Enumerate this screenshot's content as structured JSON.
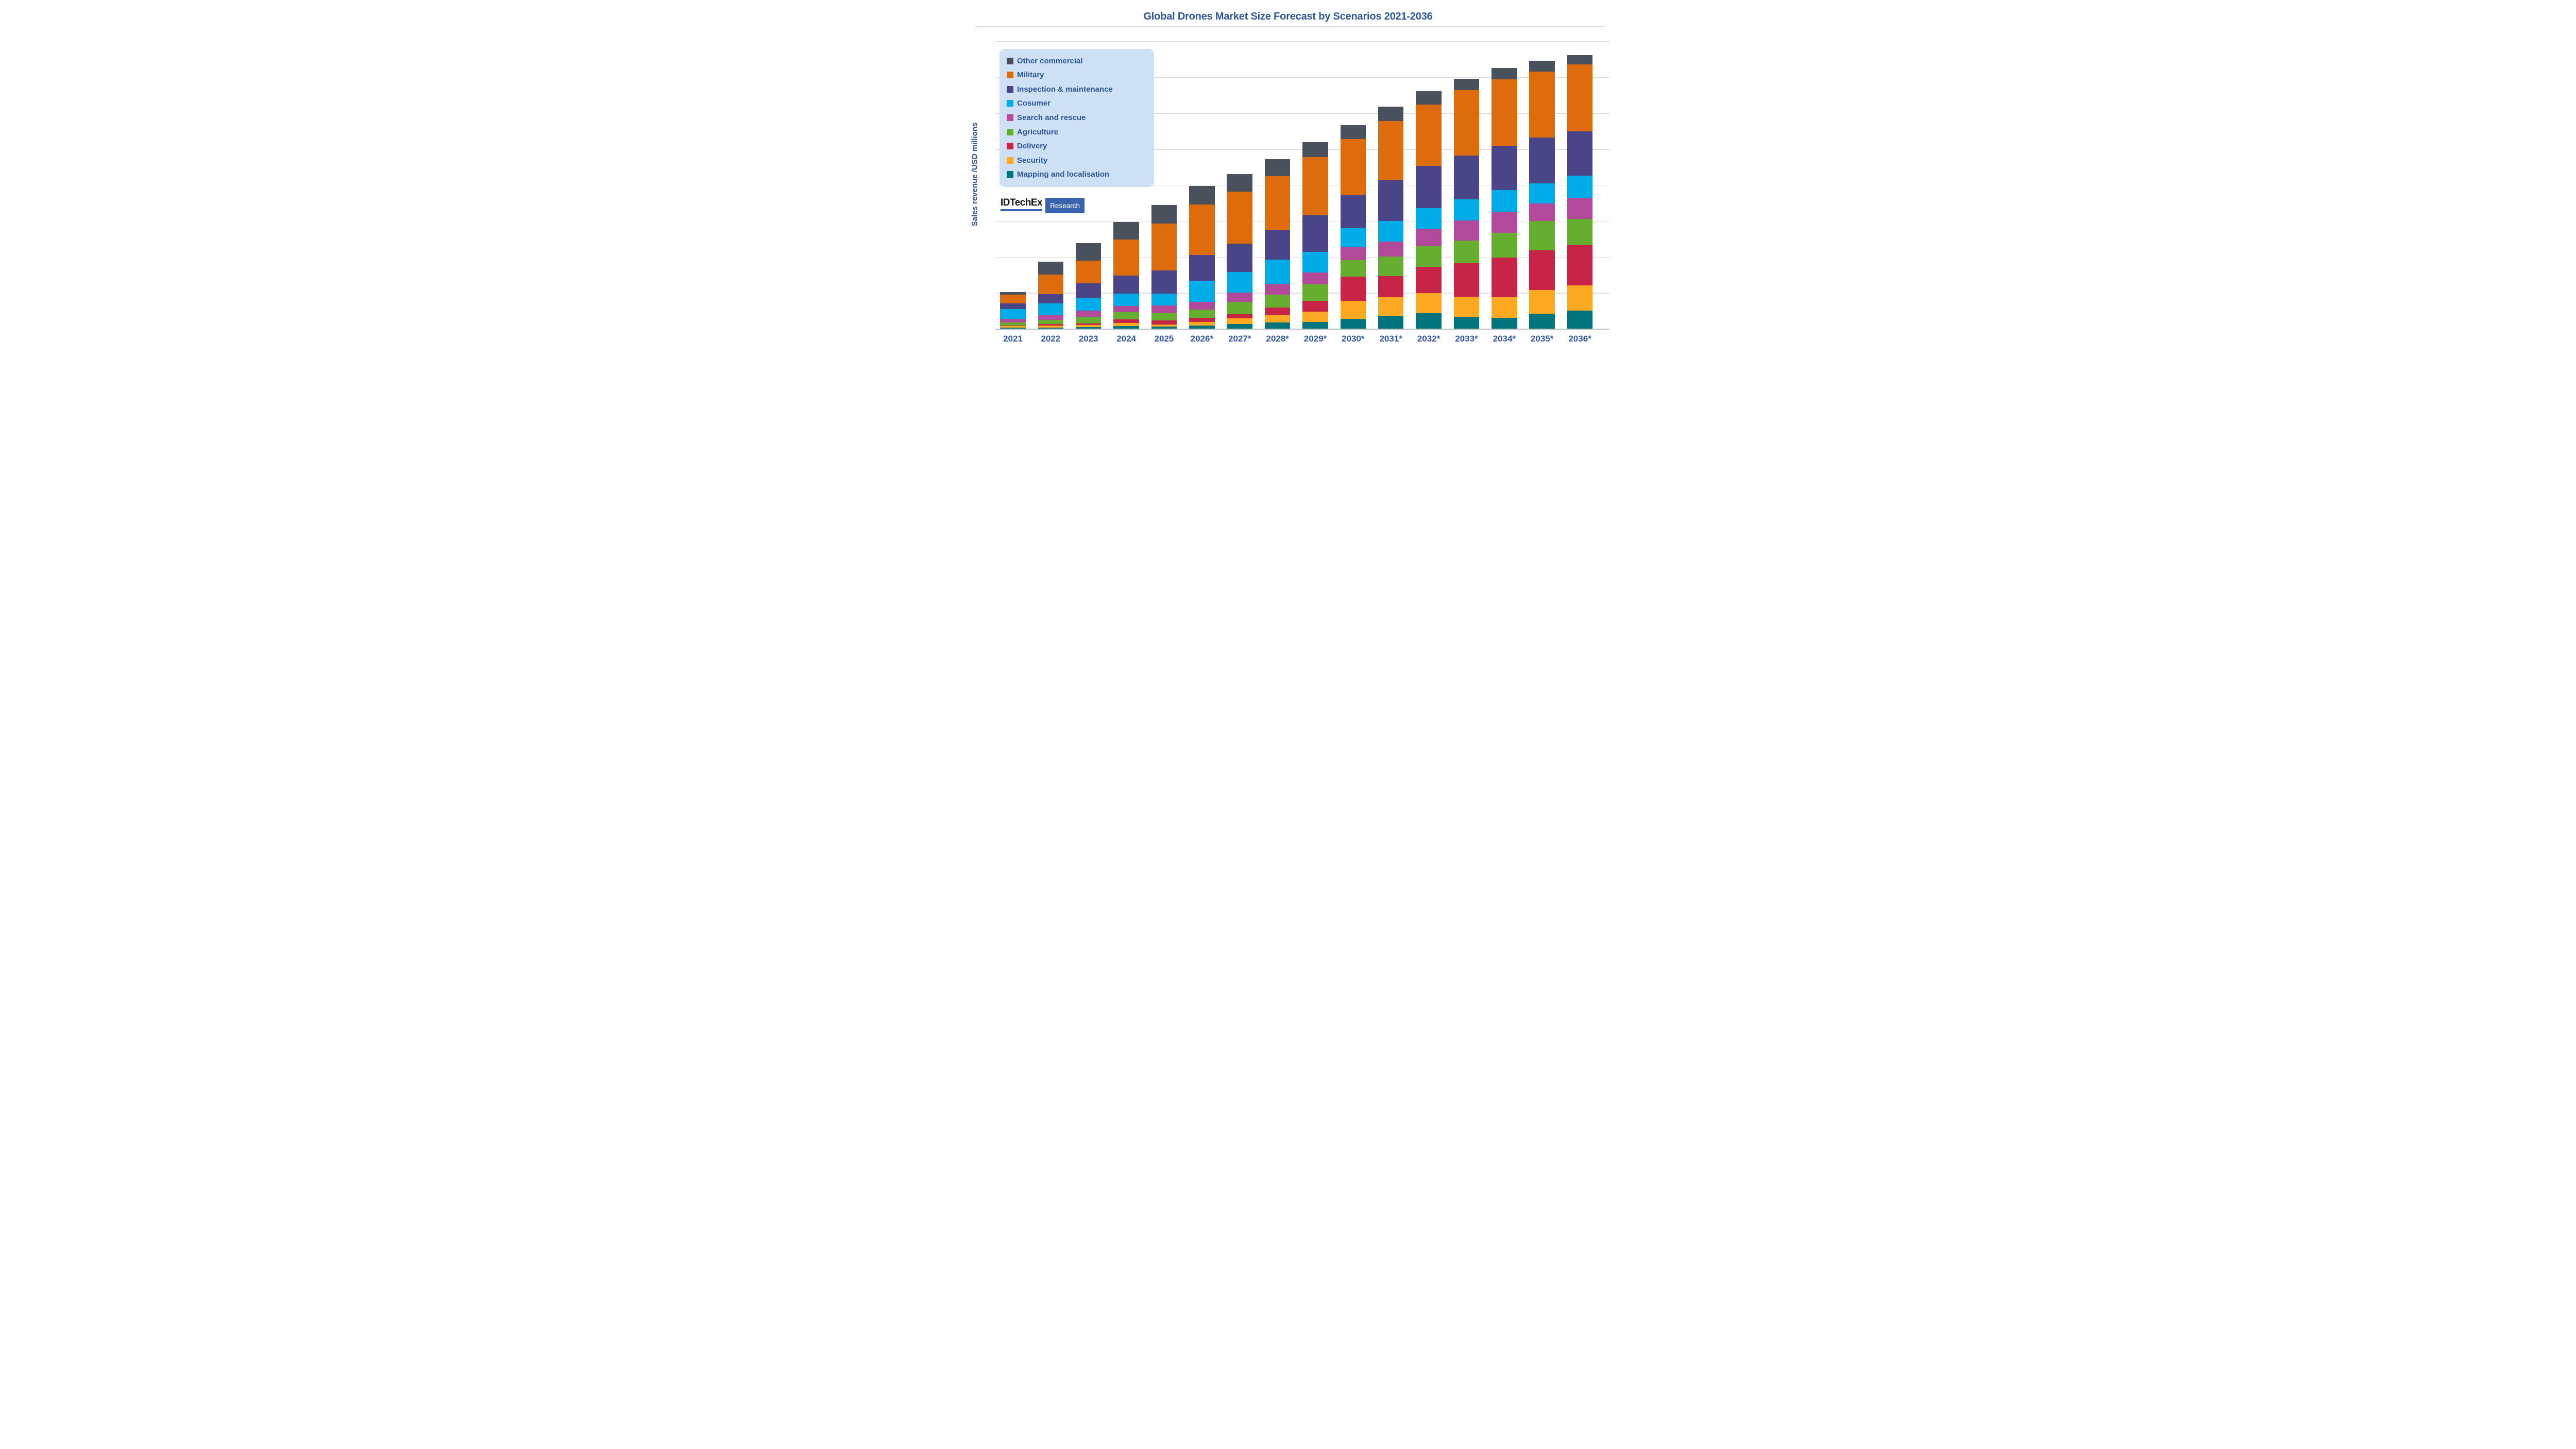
{
  "title": "Global Drones Market Size Forecast by Scenarios 2021-2036",
  "y_axis_label": "Sales revenue /USD millions",
  "logo": {
    "brand": "IDTechEx",
    "badge": "Research"
  },
  "colors": {
    "other_commercial": "#4A515C",
    "military": "#DE6C0C",
    "inspection_maintenance": "#4A4489",
    "consumer": "#00ACE8",
    "search_rescue": "#B2499B",
    "agriculture": "#66AE30",
    "delivery": "#C82448",
    "security": "#FCA821",
    "mapping_localisation": "#00747C",
    "title_text": "#2F5596",
    "axis_label_text": "#33589E",
    "legend_bg": "#CDE0F4",
    "gridline": "#DDDDDD",
    "baseline": "#C8C8C8"
  },
  "legend": {
    "items": [
      {
        "label": "Other commercial",
        "color": "#4A515C"
      },
      {
        "label": "Military",
        "color": "#DE6C0C"
      },
      {
        "label": "Inspection & maintenance",
        "color": "#4A4489"
      },
      {
        "label": "Cosumer",
        "color": "#00ACE8"
      },
      {
        "label": "Search and rescue",
        "color": "#B2499B"
      },
      {
        "label": "Agriculture",
        "color": "#66AE30"
      },
      {
        "label": "Delivery",
        "color": "#C82448"
      },
      {
        "label": "Security",
        "color": "#FCA821"
      },
      {
        "label": "Mapping and localisation",
        "color": "#00747C"
      }
    ]
  },
  "chart_data": {
    "type": "bar",
    "stacked": true,
    "title": "Global Drones Market Size Forecast by Scenarios 2021-2036",
    "xlabel": "",
    "ylabel": "Sales revenue /USD millions",
    "ylim": [
      0,
      22500
    ],
    "grid": true,
    "legend_position": "upper-left",
    "note": "Y axis has no numeric tick labels in the source image; values below are estimated from bar pixel heights in relative USD-million units. Years 2026*-2036* are forecast (asterisk).",
    "categories": [
      "2021",
      "2022",
      "2023",
      "2024",
      "2025",
      "2026*",
      "2027*",
      "2028*",
      "2029*",
      "2030*",
      "2031*",
      "2032*",
      "2033*",
      "2034*",
      "2035*",
      "2036*"
    ],
    "stack_order_bottom_to_top": [
      "Mapping and localisation",
      "Security",
      "Delivery",
      "Agriculture",
      "Search and rescue",
      "Cosumer",
      "Inspection & maintenance",
      "Military",
      "Other commercial"
    ],
    "series": [
      {
        "name": "Mapping and localisation",
        "color": "#00747C",
        "values": [
          90,
          110,
          120,
          210,
          180,
          260,
          380,
          500,
          540,
          790,
          1010,
          1200,
          940,
          860,
          1190,
          1410
        ]
      },
      {
        "name": "Security",
        "color": "#FCA821",
        "values": [
          120,
          160,
          160,
          230,
          170,
          290,
          440,
          550,
          780,
          1400,
          1450,
          1570,
          1570,
          1580,
          1840,
          1950
        ]
      },
      {
        "name": "Delivery",
        "color": "#C82448",
        "values": [
          50,
          110,
          140,
          290,
          300,
          320,
          330,
          600,
          870,
          1850,
          1650,
          2060,
          2590,
          3080,
          3070,
          3130
        ]
      },
      {
        "name": "Agriculture",
        "color": "#66AE30",
        "values": [
          230,
          300,
          530,
          570,
          560,
          620,
          940,
          1020,
          1250,
          1290,
          1520,
          1590,
          1760,
          1940,
          2270,
          2040
        ]
      },
      {
        "name": "Search and rescue",
        "color": "#B2499B",
        "values": [
          290,
          390,
          460,
          490,
          620,
          610,
          720,
          820,
          950,
          1060,
          1150,
          1340,
          1540,
          1650,
          1370,
          1660
        ]
      },
      {
        "name": "Cosumer",
        "color": "#00ACE8",
        "values": [
          750,
          890,
          950,
          940,
          920,
          1640,
          1600,
          1880,
          1600,
          1420,
          1580,
          1620,
          1660,
          1660,
          1550,
          1700
        ]
      },
      {
        "name": "Inspection & maintenance",
        "color": "#4A4489",
        "values": [
          450,
          730,
          1170,
          1390,
          1800,
          2000,
          2200,
          2320,
          2840,
          2610,
          3180,
          3260,
          3390,
          3450,
          3550,
          3450
        ]
      },
      {
        "name": "Military",
        "color": "#DE6C0C",
        "values": [
          680,
          1520,
          1780,
          2830,
          3630,
          3930,
          4030,
          4170,
          4490,
          4300,
          4610,
          4790,
          5080,
          5150,
          5150,
          5190
        ]
      },
      {
        "name": "Other commercial",
        "color": "#4A515C",
        "values": [
          210,
          1000,
          1330,
          1340,
          1450,
          1440,
          1380,
          1300,
          1180,
          1110,
          1120,
          1030,
          890,
          890,
          840,
          720
        ]
      }
    ],
    "totals": [
      2870,
      5210,
      6640,
      8290,
      9630,
      11110,
      12020,
      13160,
      14500,
      15830,
      17270,
      18460,
      19420,
      20260,
      20830,
      21250
    ]
  }
}
